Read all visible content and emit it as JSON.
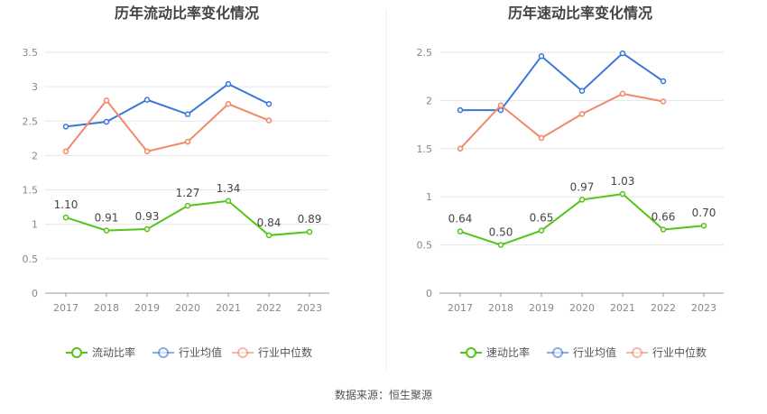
{
  "chart_data": [
    {
      "type": "line",
      "title": "历年流动比率变化情况",
      "categories": [
        "2017",
        "2018",
        "2019",
        "2020",
        "2021",
        "2022",
        "2023"
      ],
      "ylim": [
        0,
        3.5
      ],
      "yticks": [
        "0",
        "0.5",
        "1",
        "1.5",
        "2",
        "2.5",
        "3",
        "3.5"
      ],
      "grid": true,
      "legend": "bottom-center",
      "series": [
        {
          "name": "流动比率",
          "color": "#52c41a",
          "values": [
            1.1,
            0.91,
            0.93,
            1.27,
            1.34,
            0.84,
            0.89
          ],
          "labels": [
            "1.10",
            "0.91",
            "0.93",
            "1.27",
            "1.34",
            "0.84",
            "0.89"
          ]
        },
        {
          "name": "行业均值",
          "color": "#3a78d8",
          "values": [
            2.42,
            2.49,
            2.81,
            2.6,
            3.04,
            2.75,
            null
          ]
        },
        {
          "name": "行业中位数",
          "color": "#f0896a",
          "values": [
            2.06,
            2.8,
            2.06,
            2.2,
            2.75,
            2.51,
            null
          ]
        }
      ]
    },
    {
      "type": "line",
      "title": "历年速动比率变化情况",
      "categories": [
        "2017",
        "2018",
        "2019",
        "2020",
        "2021",
        "2022",
        "2023"
      ],
      "ylim": [
        0,
        2.5
      ],
      "yticks": [
        "0",
        "0.5",
        "1",
        "1.5",
        "2",
        "2.5"
      ],
      "grid": true,
      "legend": "bottom-center",
      "series": [
        {
          "name": "速动比率",
          "color": "#52c41a",
          "values": [
            0.64,
            0.5,
            0.65,
            0.97,
            1.03,
            0.66,
            0.7
          ],
          "labels": [
            "0.64",
            "0.50",
            "0.65",
            "0.97",
            "1.03",
            "0.66",
            "0.70"
          ]
        },
        {
          "name": "行业均值",
          "color": "#3a78d8",
          "values": [
            1.9,
            1.9,
            2.46,
            2.1,
            2.49,
            2.2,
            null
          ]
        },
        {
          "name": "行业中位数",
          "color": "#f0896a",
          "values": [
            1.5,
            1.95,
            1.61,
            1.86,
            2.07,
            1.99,
            null
          ]
        }
      ]
    }
  ],
  "footer": {
    "source": "数据来源：恒生聚源"
  }
}
